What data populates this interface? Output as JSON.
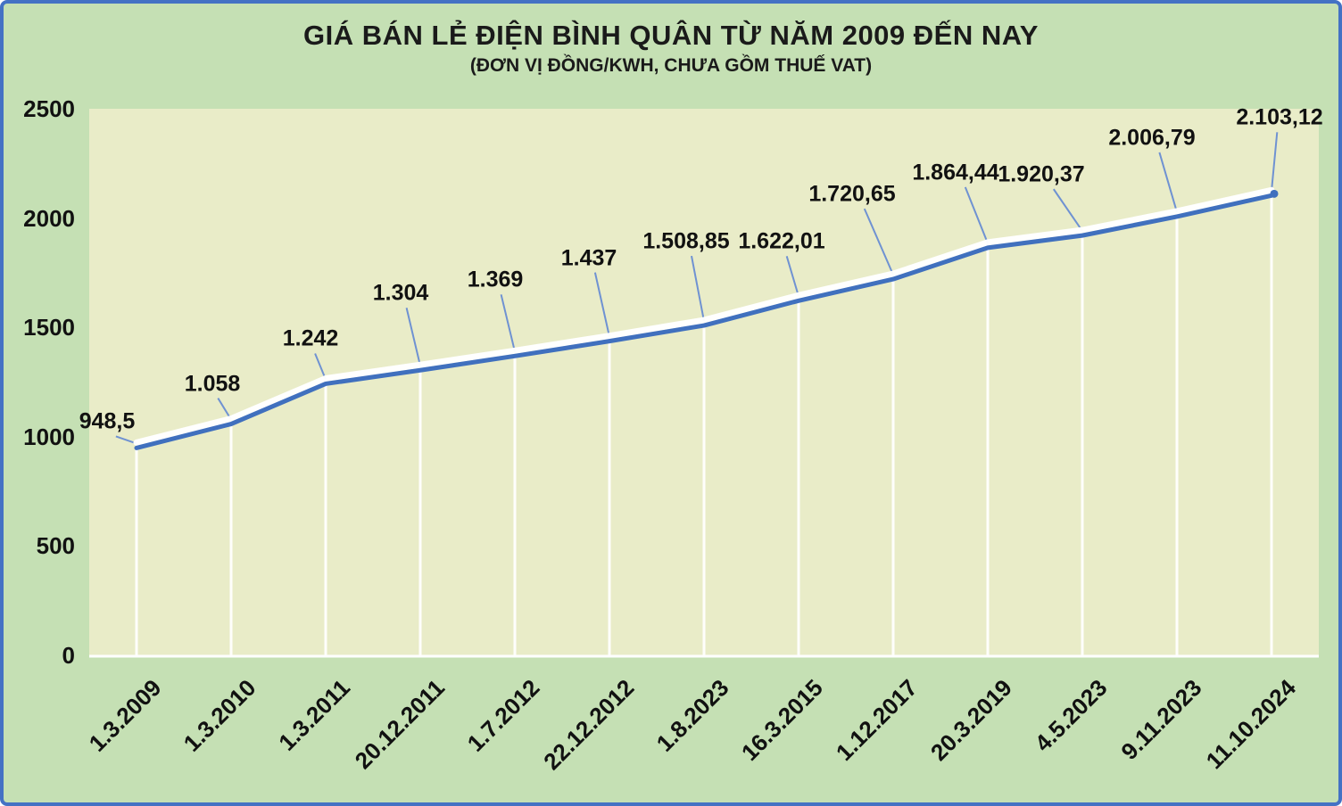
{
  "title": "GIÁ BÁN LẺ ĐIỆN BÌNH QUÂN TỪ NĂM 2009 ĐẾN NAY",
  "subtitle": "(ĐƠN VỊ ĐỒNG/KWH, CHƯA GỒM THUẾ VAT)",
  "colors": {
    "background": "#c5e0b4",
    "plot_background": "#e9ecc8",
    "border": "#4472c4",
    "line": "#4070be",
    "line_highlight": "#ffffff",
    "drop_line": "#ffffff",
    "leader_line": "#6f92d2",
    "text": "#111111"
  },
  "chart_data": {
    "type": "line",
    "title": "GIÁ BÁN LẺ ĐIỆN BÌNH QUÂN TỪ NĂM 2009 ĐẾN NAY",
    "subtitle": "(ĐƠN VỊ ĐỒNG/KWH, CHƯA GỒM THUẾ VAT)",
    "categories": [
      "1.3.2009",
      "1.3.2010",
      "1.3.2011",
      "20.12.2011",
      "1.7.2012",
      "22.12.2012",
      "1.8.2023",
      "16.3.2015",
      "1.12.2017",
      "20.3.2019",
      "4.5.2023",
      "9.11.2023",
      "11.10.2024"
    ],
    "values": [
      948.5,
      1058,
      1242,
      1304,
      1369,
      1437,
      1508.85,
      1622.01,
      1720.65,
      1864.44,
      1920.37,
      2006.79,
      2103.12
    ],
    "value_labels": [
      "948,5",
      "1.058",
      "1.242",
      "1.304",
      "1.369",
      "1.437",
      "1.508,85",
      "1.622,01",
      "1.720,65",
      "1.864,44",
      "1.920,37",
      "2.006,79",
      "2.103,12"
    ],
    "y_ticks": [
      0,
      500,
      1000,
      1500,
      2000,
      2500
    ],
    "y_tick_labels": [
      "0",
      "500",
      "1000",
      "1500",
      "2000",
      "2500"
    ],
    "ylim": [
      0,
      2500
    ],
    "xlabel": "",
    "ylabel": "",
    "legend": "none",
    "grid": "white vertical drop lines at each data point, white baseline axis",
    "marker": "dot on last point only"
  }
}
